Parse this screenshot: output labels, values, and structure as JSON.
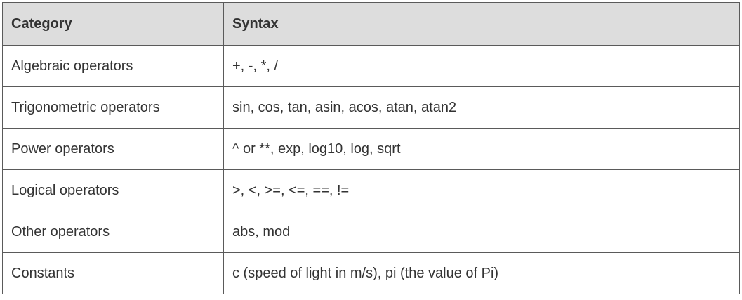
{
  "table": {
    "headers": [
      "Category",
      "Syntax"
    ],
    "rows": [
      {
        "category": "Algebraic operators",
        "syntax": "+, -, *, /"
      },
      {
        "category": "Trigonometric operators",
        "syntax": "sin, cos, tan, asin, acos, atan, atan2"
      },
      {
        "category": "Power operators",
        "syntax": "^ or **, exp, log10, log, sqrt"
      },
      {
        "category": "Logical operators",
        "syntax": ">, <, >=, <=, ==, !="
      },
      {
        "category": "Other operators",
        "syntax": "abs, mod"
      },
      {
        "category": "Constants",
        "syntax": "c (speed of light in m/s), pi (the value of Pi)"
      }
    ]
  }
}
